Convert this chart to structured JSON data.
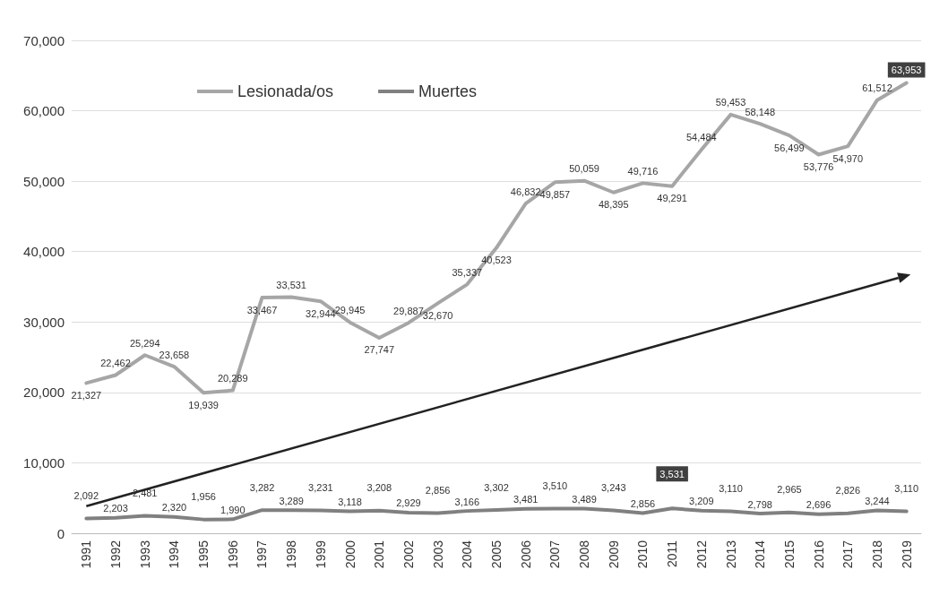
{
  "chart_data": {
    "type": "line",
    "categories": [
      "1991",
      "1992",
      "1993",
      "1994",
      "1995",
      "1996",
      "1997",
      "1998",
      "1999",
      "2000",
      "2001",
      "2002",
      "2003",
      "2004",
      "2005",
      "2006",
      "2007",
      "2008",
      "2009",
      "2010",
      "2011",
      "2012",
      "2013",
      "2014",
      "2015",
      "2016",
      "2017",
      "2018",
      "2019"
    ],
    "series": [
      {
        "name": "Lesionada/os",
        "color": "#a6a6a6",
        "values": [
          21327,
          22462,
          25294,
          23658,
          19939,
          20289,
          33467,
          33531,
          32944,
          29945,
          27747,
          29887,
          32670,
          35337,
          40523,
          46832,
          49857,
          50059,
          48395,
          49716,
          49291,
          54484,
          59453,
          58148,
          56499,
          53776,
          54970,
          61512,
          63953
        ],
        "value_labels": [
          "21,327",
          "22,462",
          "25,294",
          "23,658",
          "19,939",
          "20,289",
          "33,467",
          "33,531",
          "32,944",
          "29,945",
          "27,747",
          "29,887",
          "32,670",
          "35,337",
          "40,523",
          "46,832",
          "49,857",
          "50,059",
          "48,395",
          "49,716",
          "49,291",
          "54,484",
          "59,453",
          "58,148",
          "56,499",
          "53,776",
          "54,970",
          "61,512",
          "63,953"
        ]
      },
      {
        "name": "Muertes",
        "color": "#808080",
        "values": [
          2092,
          2203,
          2481,
          2320,
          1956,
          1990,
          3282,
          3289,
          3231,
          3118,
          3208,
          2929,
          2856,
          3166,
          3302,
          3481,
          3510,
          3489,
          3243,
          2856,
          3531,
          3209,
          3110,
          2798,
          2965,
          2696,
          2826,
          3244,
          3110
        ],
        "value_labels": [
          "2,092",
          "2,203",
          "2,481",
          "2,320",
          "1,956",
          "1,990",
          "3,282",
          "3,289",
          "3,231",
          "3,118",
          "3,208",
          "2,929",
          "2,856",
          "3,166",
          "3,302",
          "3,481",
          "3,510",
          "3,489",
          "3,243",
          "2,856",
          "3,531",
          "3,209",
          "3,110",
          "2,798",
          "2,965",
          "2,696",
          "2,826",
          "3,244",
          "3,110"
        ]
      }
    ],
    "ylim": [
      0,
      70000
    ],
    "yticks": [
      0,
      {
        "value": 10000,
        "label": "10,000"
      },
      {
        "value": 20000,
        "label": "20,000"
      },
      {
        "value": 30000,
        "label": "30,000"
      },
      {
        "value": 40000,
        "label": "40,000"
      },
      {
        "value": 50000,
        "label": "50,000"
      },
      {
        "value": 60000,
        "label": "60,000"
      },
      {
        "value": 70000,
        "label": "70,000"
      }
    ],
    "grid": "y",
    "legend": "top left",
    "marker": "none",
    "line_style": "solid"
  }
}
